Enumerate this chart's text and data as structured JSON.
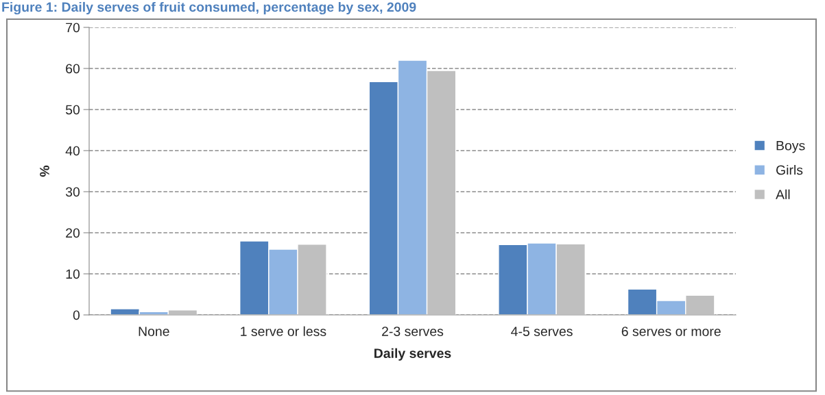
{
  "chart_data": {
    "type": "bar",
    "title": "Figure 1: Daily serves of fruit consumed, percentage by sex, 2009",
    "xlabel": "Daily serves",
    "ylabel": "%",
    "categories": [
      "None",
      "1 serve or less",
      "2-3 serves",
      "4-5 serves",
      "6 serves or more"
    ],
    "series": [
      {
        "name": "Boys",
        "color": "#4f81bd",
        "values": [
          1.5,
          18.0,
          56.8,
          17.1,
          6.3
        ]
      },
      {
        "name": "Girls",
        "color": "#8eb4e3",
        "values": [
          0.8,
          16.0,
          62.0,
          17.5,
          3.5
        ]
      },
      {
        "name": "All",
        "color": "#bfbfbf",
        "values": [
          1.2,
          17.2,
          59.5,
          17.3,
          4.8
        ]
      }
    ],
    "ylim": [
      0,
      70
    ],
    "yticks": [
      0,
      10,
      20,
      30,
      40,
      50,
      60,
      70
    ],
    "grid": "y",
    "legend": "right"
  }
}
